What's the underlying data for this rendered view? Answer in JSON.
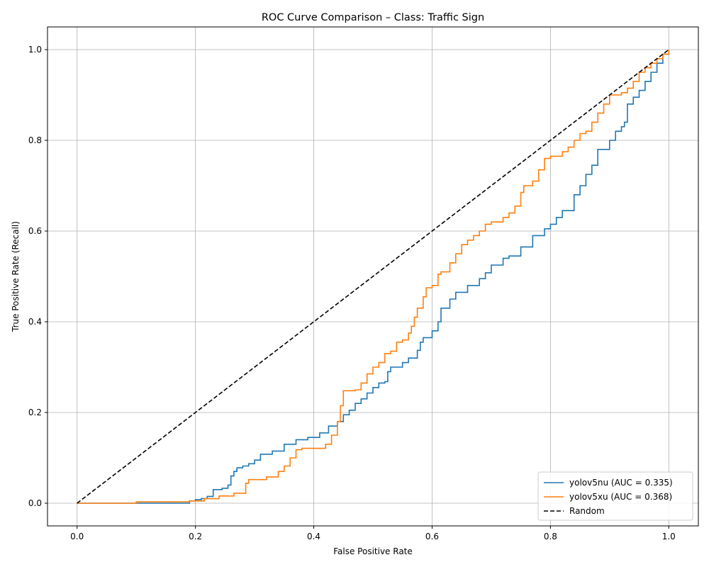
{
  "chart_data": {
    "type": "line",
    "title": "ROC Curve Comparison – Class: Traffic Sign",
    "xlabel": "False Positive Rate",
    "ylabel": "True Positive Rate (Recall)",
    "xlim": [
      -0.05,
      1.05
    ],
    "ylim": [
      -0.05,
      1.05
    ],
    "xticks": [
      "0.0",
      "0.2",
      "0.4",
      "0.6",
      "0.8",
      "1.0"
    ],
    "yticks": [
      "0.0",
      "0.2",
      "0.4",
      "0.6",
      "0.8",
      "1.0"
    ],
    "xtick_values": [
      0,
      0.2,
      0.4,
      0.6,
      0.8,
      1.0
    ],
    "ytick_values": [
      0,
      0.2,
      0.4,
      0.6,
      0.8,
      1.0
    ],
    "grid": true,
    "legend_position": "lower-right",
    "series": [
      {
        "name": "yolov5nu (AUC = 0.335)",
        "color": "#1f77b4",
        "style": "solid",
        "x": [
          0,
          0.1,
          0.155,
          0.19,
          0.2,
          0.21,
          0.22,
          0.23,
          0.245,
          0.255,
          0.26,
          0.265,
          0.27,
          0.28,
          0.29,
          0.3,
          0.31,
          0.33,
          0.35,
          0.37,
          0.39,
          0.41,
          0.425,
          0.44,
          0.45,
          0.46,
          0.47,
          0.48,
          0.49,
          0.5,
          0.51,
          0.52,
          0.525,
          0.53,
          0.55,
          0.56,
          0.575,
          0.58,
          0.585,
          0.6,
          0.61,
          0.615,
          0.63,
          0.64,
          0.66,
          0.68,
          0.69,
          0.7,
          0.72,
          0.73,
          0.75,
          0.77,
          0.79,
          0.8,
          0.81,
          0.82,
          0.84,
          0.85,
          0.86,
          0.87,
          0.88,
          0.9,
          0.91,
          0.92,
          0.925,
          0.93,
          0.94,
          0.95,
          0.96,
          0.97,
          0.98,
          0.99,
          1.0
        ],
        "y": [
          0,
          0,
          0,
          0.005,
          0.008,
          0.01,
          0.015,
          0.03,
          0.033,
          0.04,
          0.06,
          0.07,
          0.078,
          0.082,
          0.087,
          0.095,
          0.108,
          0.115,
          0.13,
          0.14,
          0.145,
          0.155,
          0.17,
          0.18,
          0.195,
          0.205,
          0.22,
          0.23,
          0.243,
          0.255,
          0.265,
          0.268,
          0.29,
          0.3,
          0.31,
          0.32,
          0.337,
          0.355,
          0.365,
          0.38,
          0.4,
          0.43,
          0.45,
          0.465,
          0.48,
          0.495,
          0.508,
          0.525,
          0.54,
          0.545,
          0.565,
          0.59,
          0.605,
          0.615,
          0.63,
          0.645,
          0.68,
          0.7,
          0.725,
          0.745,
          0.78,
          0.8,
          0.82,
          0.83,
          0.84,
          0.88,
          0.895,
          0.91,
          0.93,
          0.95,
          0.97,
          0.99,
          1.0
        ]
      },
      {
        "name": "yolov5xu (AUC = 0.368)",
        "color": "#ff7f0e",
        "style": "solid",
        "x": [
          0,
          0.1,
          0.19,
          0.215,
          0.24,
          0.265,
          0.285,
          0.29,
          0.32,
          0.34,
          0.35,
          0.36,
          0.37,
          0.38,
          0.41,
          0.42,
          0.43,
          0.44,
          0.445,
          0.45,
          0.47,
          0.48,
          0.49,
          0.5,
          0.51,
          0.52,
          0.53,
          0.54,
          0.55,
          0.56,
          0.565,
          0.57,
          0.575,
          0.58,
          0.585,
          0.59,
          0.6,
          0.61,
          0.615,
          0.63,
          0.64,
          0.65,
          0.66,
          0.67,
          0.68,
          0.69,
          0.7,
          0.72,
          0.73,
          0.74,
          0.75,
          0.755,
          0.77,
          0.78,
          0.79,
          0.8,
          0.82,
          0.83,
          0.84,
          0.85,
          0.86,
          0.87,
          0.88,
          0.89,
          0.9,
          0.92,
          0.93,
          0.94,
          0.95,
          0.96,
          0.97,
          0.98,
          0.99,
          1.0
        ],
        "y": [
          0,
          0.003,
          0.005,
          0.01,
          0.016,
          0.022,
          0.044,
          0.052,
          0.058,
          0.07,
          0.082,
          0.1,
          0.118,
          0.121,
          0.121,
          0.13,
          0.15,
          0.18,
          0.215,
          0.248,
          0.25,
          0.265,
          0.285,
          0.3,
          0.31,
          0.33,
          0.335,
          0.355,
          0.36,
          0.375,
          0.39,
          0.41,
          0.43,
          0.43,
          0.455,
          0.475,
          0.48,
          0.505,
          0.51,
          0.53,
          0.55,
          0.57,
          0.58,
          0.59,
          0.6,
          0.615,
          0.62,
          0.63,
          0.64,
          0.655,
          0.685,
          0.7,
          0.71,
          0.735,
          0.76,
          0.765,
          0.775,
          0.785,
          0.8,
          0.815,
          0.82,
          0.84,
          0.86,
          0.88,
          0.9,
          0.905,
          0.915,
          0.93,
          0.95,
          0.96,
          0.97,
          0.98,
          0.99,
          1.0
        ]
      },
      {
        "name": "Random",
        "color": "#000000",
        "style": "dashed",
        "x": [
          0,
          1
        ],
        "y": [
          0,
          1
        ]
      }
    ]
  }
}
